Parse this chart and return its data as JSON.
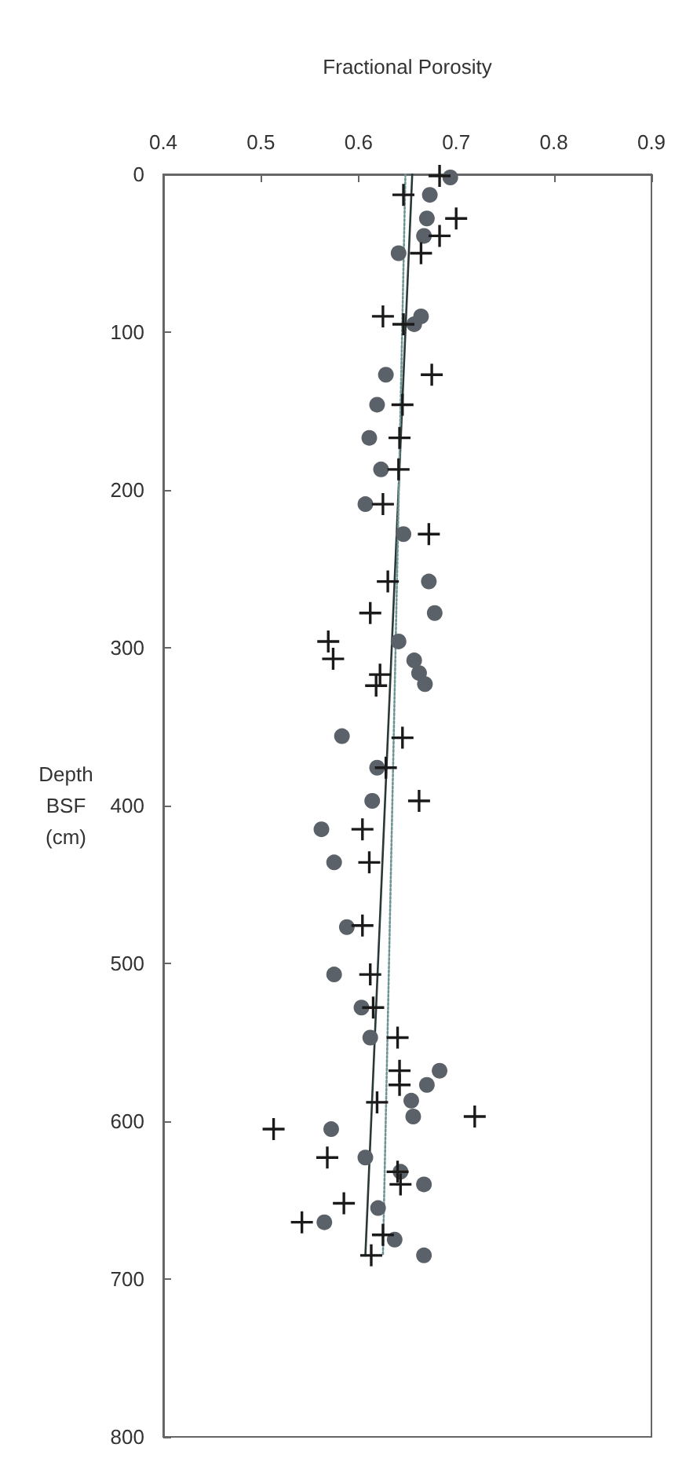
{
  "chart_data": {
    "type": "scatter",
    "xlabel": "Fractional Porosity",
    "ylabel": "Depth BSF (cm)",
    "xlim": [
      0.4,
      0.9
    ],
    "xticks": [
      0.4,
      0.5,
      0.6,
      0.7,
      0.8,
      0.9
    ],
    "ylim": [
      800,
      0
    ],
    "yticks": [
      0,
      100,
      200,
      300,
      400,
      500,
      600,
      700,
      800
    ],
    "series": [
      {
        "marker": "circle",
        "color": "#5b6168",
        "x": [
          0.694,
          0.673,
          0.67,
          0.667,
          0.641,
          0.664,
          0.657,
          0.628,
          0.619,
          0.611,
          0.623,
          0.607,
          0.646,
          0.672,
          0.678,
          0.641,
          0.657,
          0.662,
          0.668,
          0.583,
          0.619,
          0.614,
          0.562,
          0.575,
          0.588,
          0.575,
          0.603,
          0.612,
          0.683,
          0.67,
          0.654,
          0.656,
          0.572,
          0.607,
          0.643,
          0.667,
          0.62,
          0.565,
          0.637,
          0.667
        ],
        "values": [
          2,
          13,
          28,
          39,
          50,
          90,
          95,
          127,
          146,
          167,
          187,
          209,
          228,
          258,
          278,
          296,
          308,
          316,
          323,
          356,
          376,
          397,
          415,
          436,
          477,
          507,
          528,
          547,
          568,
          577,
          587,
          597,
          605,
          623,
          632,
          640,
          655,
          664,
          675,
          685
        ]
      },
      {
        "marker": "cross",
        "color": "#1a1a1a",
        "x": [
          0.683,
          0.646,
          0.7,
          0.683,
          0.664,
          0.625,
          0.646,
          0.675,
          0.645,
          0.642,
          0.641,
          0.625,
          0.672,
          0.63,
          0.612,
          0.569,
          0.574,
          0.622,
          0.618,
          0.645,
          0.628,
          0.662,
          0.604,
          0.611,
          0.604,
          0.612,
          0.615,
          0.64,
          0.642,
          0.642,
          0.619,
          0.719,
          0.513,
          0.568,
          0.64,
          0.643,
          0.585,
          0.542,
          0.625,
          0.613
        ],
        "values": [
          1,
          13,
          28,
          39,
          50,
          90,
          95,
          127,
          146,
          167,
          187,
          209,
          228,
          258,
          278,
          296,
          307,
          317,
          324,
          357,
          376,
          397,
          415,
          436,
          476,
          507,
          528,
          547,
          568,
          577,
          588,
          597,
          605,
          623,
          632,
          640,
          652,
          664,
          672,
          685
        ]
      },
      {
        "type": "line",
        "marker": "none",
        "line_style": "solid",
        "color": "#2a3838",
        "x": [
          0.655,
          0.607
        ],
        "values": [
          0,
          685
        ]
      },
      {
        "type": "line",
        "marker": "none",
        "line_style": "dotted",
        "color": "#6f9494",
        "x": [
          0.648,
          0.625
        ],
        "values": [
          0,
          685
        ]
      }
    ]
  }
}
